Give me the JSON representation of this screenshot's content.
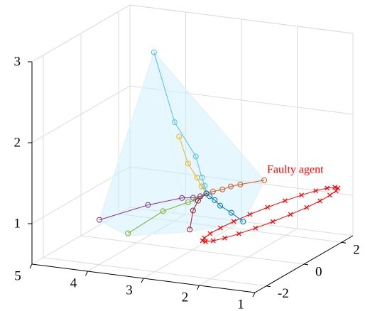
{
  "chart_data": {
    "type": "line3d",
    "annotation": "Faulty agent",
    "x_reversed": true,
    "xlim": [
      1,
      5
    ],
    "ylim": [
      -2.6,
      2.6
    ],
    "zlim": [
      0.5,
      3
    ],
    "xticks": [
      1,
      2,
      3,
      4,
      5
    ],
    "yticks": [
      -2,
      0,
      2
    ],
    "zticks": [
      1,
      2,
      3
    ],
    "grid": true,
    "faulty": {
      "color": "#ff0000",
      "marker": "x",
      "x": [
        1.4,
        1.36,
        1.34,
        1.34,
        1.37,
        1.43,
        1.51,
        1.6,
        1.7,
        1.8,
        1.9,
        1.99,
        2.06,
        2.1,
        2.13,
        2.12,
        2.09,
        2.03,
        1.95,
        1.86,
        1.76,
        1.66,
        1.56,
        1.47,
        1.4
      ],
      "y": [
        2.99,
        2.77,
        2.38,
        1.86,
        1.24,
        0.56,
        -0.14,
        -0.8,
        -1.38,
        -1.84,
        -2.15,
        -2.29,
        -2.25,
        -2.03,
        -1.64,
        -1.12,
        -0.5,
        0.18,
        0.88,
        1.54,
        2.12,
        2.58,
        2.89,
        3.03,
        2.99
      ],
      "z": [
        1,
        1,
        1,
        1,
        1,
        1,
        1,
        1,
        1,
        1,
        1,
        1,
        1,
        1,
        1,
        1,
        1,
        1,
        1,
        1,
        1,
        1,
        1,
        1,
        1
      ]
    },
    "series": [
      {
        "color": "#4dbeee",
        "marker": "o",
        "x": [
          3.69,
          3.32,
          2.94,
          2.83,
          2.78,
          2.75
        ],
        "y": [
          0,
          0,
          0,
          0,
          0,
          0
        ],
        "z": [
          2.88,
          2.05,
          1.66,
          1.41,
          1.31,
          1.22
        ]
      },
      {
        "color": "#edb120",
        "marker": "o",
        "x": [
          3.34,
          3.18,
          3.02,
          2.94,
          2.75
        ],
        "y": [
          0.3,
          0.3,
          0.3,
          0.3,
          0
        ],
        "z": [
          1.83,
          1.51,
          1.35,
          1.25,
          1.22
        ]
      },
      {
        "color": "#d95319",
        "marker": "o",
        "x": [
          2.05,
          2.48,
          2.65,
          2.8,
          2.97,
          2.75
        ],
        "y": [
          1,
          1,
          1,
          1,
          1,
          0
        ],
        "z": [
          1.31,
          1.22,
          1.18,
          1.13,
          1.09,
          1.22
        ]
      },
      {
        "color": "#7e2f8e",
        "marker": "o",
        "x": [
          4.33,
          3.46,
          2.85,
          2.65,
          2.52,
          2.75
        ],
        "y": [
          -1,
          -1,
          -1,
          -1,
          -1,
          0
        ],
        "z": [
          0.89,
          1.15,
          1.29,
          1.31,
          1.34,
          1.22
        ]
      },
      {
        "color": "#77ac30",
        "marker": "o",
        "x": [
          3.65,
          3.02,
          2.57,
          2.43,
          2.75
        ],
        "y": [
          -1.5,
          -1.5,
          -1.5,
          -1.5,
          0
        ],
        "z": [
          0.85,
          1.18,
          1.33,
          1.37,
          1.22
        ]
      },
      {
        "color": "#a2142f",
        "marker": "o",
        "x": [
          2.88,
          2.82,
          2.73,
          2.75
        ],
        "y": [
          -0.5,
          -0.5,
          -0.5,
          0
        ],
        "z": [
          0.83,
          1.07,
          1.2,
          1.22
        ]
      },
      {
        "color": "#0072bd",
        "marker": "o",
        "x": [
          1.99,
          2.2,
          2.4,
          2.5,
          2.59,
          2.75
        ],
        "y": [
          -0.3,
          -0.3,
          -0.3,
          -0.3,
          -0.3,
          0
        ],
        "z": [
          0.98,
          1.07,
          1.14,
          1.2,
          1.24,
          1.22
        ]
      }
    ]
  }
}
